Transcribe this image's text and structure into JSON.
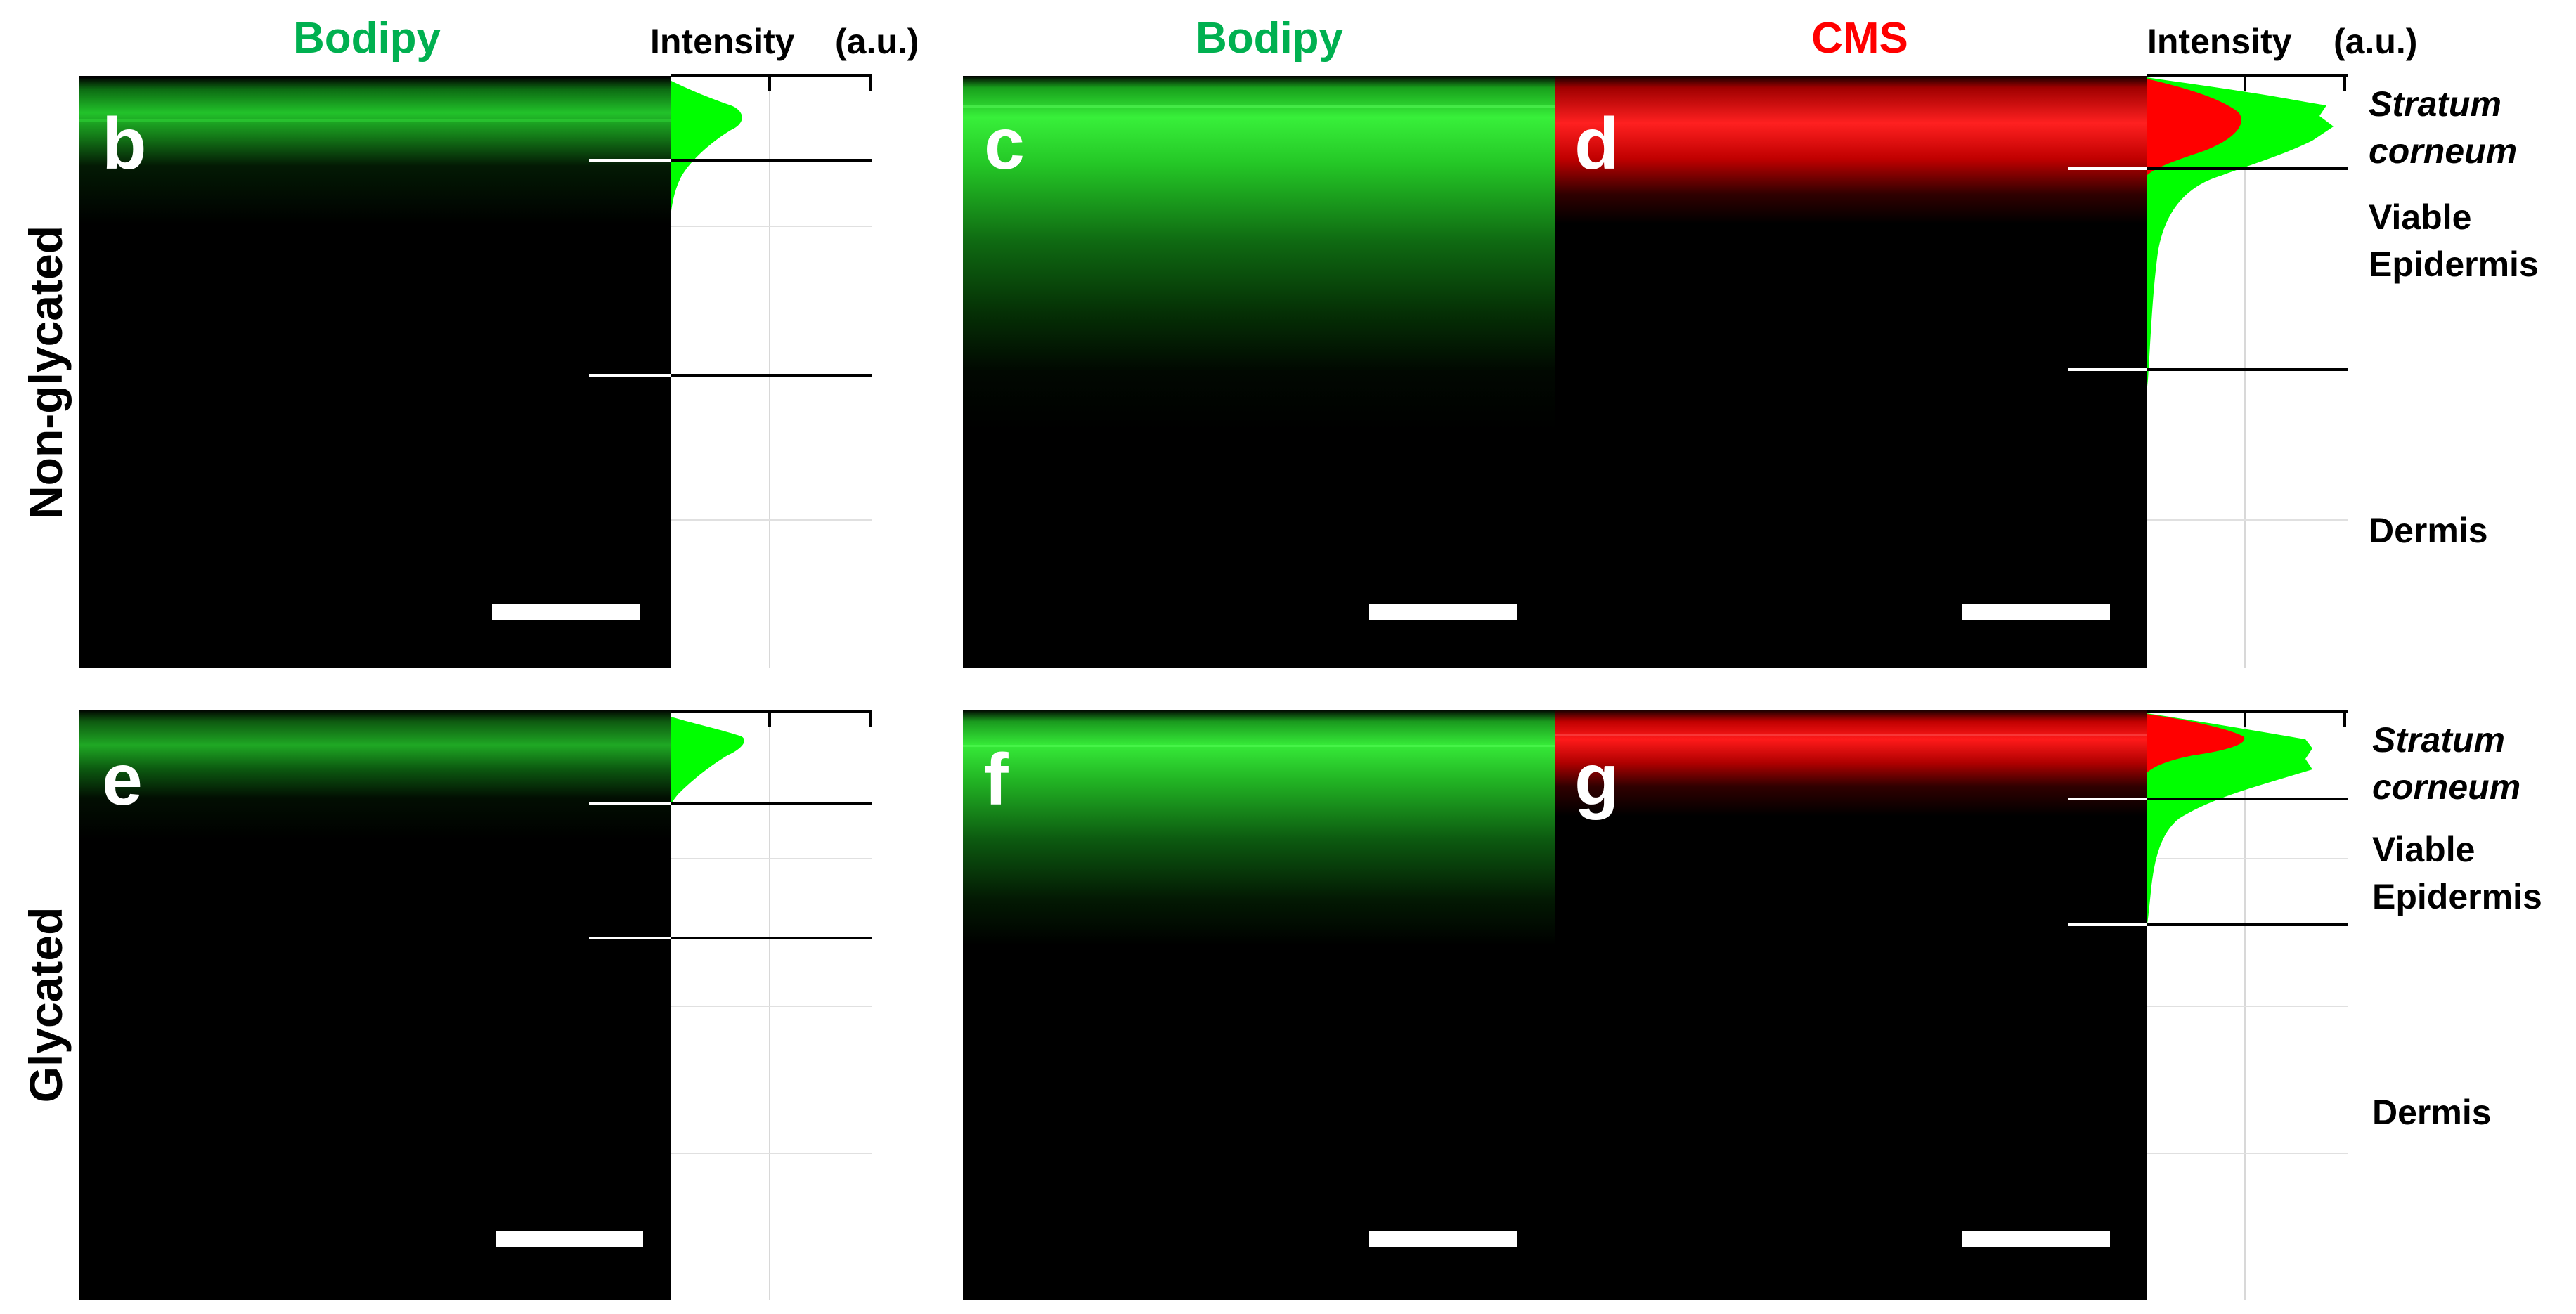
{
  "headers": {
    "bodipy_left": "Bodipy",
    "intensity_left": "Intensity",
    "au_left": "(a.u.)",
    "bodipy_right": "Bodipy",
    "cms": "CMS",
    "intensity_right": "Intensity",
    "au_right": "(a.u.)"
  },
  "rows": {
    "top": "Non-glycated",
    "bottom": "Glycated"
  },
  "panels": {
    "b": "b",
    "c": "c",
    "d": "d",
    "e": "e",
    "f": "f",
    "g": "g"
  },
  "layers_top": {
    "sc1": "Stratum",
    "sc2": "corneum",
    "ve1": "Viable",
    "ve2": "Epidermis",
    "dermis": "Dermis"
  },
  "layers_bottom": {
    "sc1": "Stratum",
    "sc2": "corneum",
    "ve1": "Viable",
    "ve2": "Epidermis",
    "dermis": "Dermis"
  },
  "colors": {
    "bodipy_text": "#00b050",
    "cms_text": "#ff0000",
    "green_signal": "#00ff00",
    "red_signal": "#ff0000",
    "background": "#000000"
  }
}
